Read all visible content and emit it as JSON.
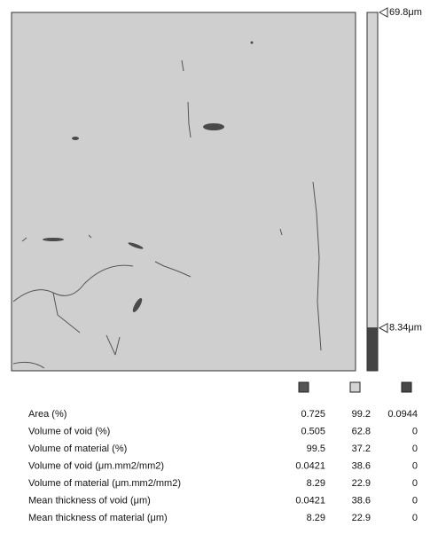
{
  "scale": {
    "max": 69.8,
    "max_label": "69.8μm",
    "threshold": 8.34,
    "threshold_label": "8.34μm"
  },
  "table": {
    "column_colors": [
      "#555555",
      "#d4d4d4",
      "#484848"
    ],
    "rows": [
      [
        "Area (%)",
        "0.725",
        "99.2",
        "0.0944"
      ],
      [
        "Volume of void (%)",
        "0.505",
        "62.8",
        "0"
      ],
      [
        "Volume of material (%)",
        "99.5",
        "37.2",
        "0"
      ],
      [
        "Volume of void (μm.mm2/mm2)",
        "0.0421",
        "38.6",
        "0"
      ],
      [
        "Volume of material (μm.mm2/mm2)",
        "8.29",
        "22.9",
        "0"
      ],
      [
        "Mean thickness of void (μm)",
        "0.0421",
        "38.6",
        "0"
      ],
      [
        "Mean thickness of material (μm)",
        "8.29",
        "22.9",
        "0"
      ]
    ]
  }
}
